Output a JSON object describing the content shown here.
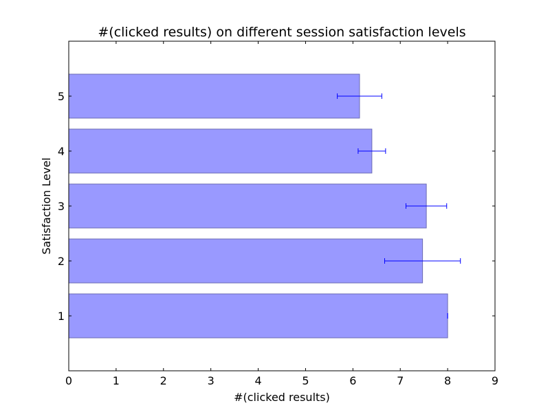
{
  "chart_data": {
    "type": "bar",
    "orientation": "horizontal",
    "title": "#(clicked results) on different session satisfaction levels",
    "xlabel": "#(clicked results)",
    "ylabel": "Satisfaction Level",
    "categories": [
      "1",
      "2",
      "3",
      "4",
      "5"
    ],
    "values": [
      8.0,
      7.47,
      7.55,
      6.4,
      6.14
    ],
    "errors": [
      0.0,
      0.8,
      0.43,
      0.29,
      0.47
    ],
    "xlim": [
      0,
      9
    ],
    "xticks": [
      "0",
      "1",
      "2",
      "3",
      "4",
      "5",
      "6",
      "7",
      "8",
      "9"
    ],
    "grid": false,
    "legend": "none",
    "colors": {
      "bar_fill": "#9999ff",
      "bar_edge": "#6b6bb3",
      "error_bar": "#0000ff",
      "axes": "#000000"
    }
  }
}
